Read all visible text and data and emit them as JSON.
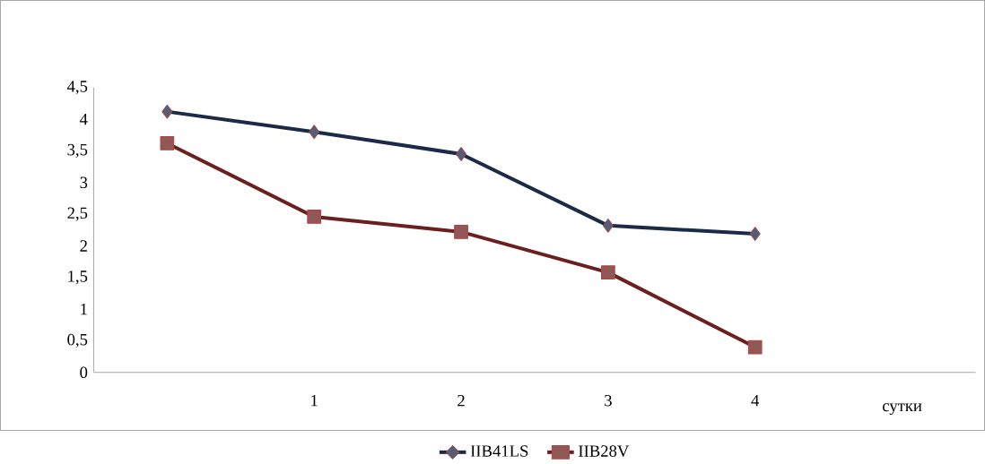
{
  "chart_data": {
    "type": "line",
    "xlabel": "сутки",
    "categories": [
      null,
      "1",
      "2",
      "3",
      "4"
    ],
    "series": [
      {
        "name": "IIB41LS",
        "color": "#1b2a47",
        "marker": "diamond",
        "values": [
          4.12,
          3.8,
          3.45,
          2.32,
          2.19
        ]
      },
      {
        "name": "IIB28V",
        "color": "#6b1f1f",
        "marker": "square",
        "values": [
          3.62,
          2.46,
          2.22,
          1.58,
          0.4
        ]
      }
    ],
    "ylim": [
      0,
      4.5
    ],
    "yticks": [
      0,
      {
        "value": 0.5,
        "label": "0,5"
      },
      1,
      {
        "value": 1.5,
        "label": "1,5"
      },
      2,
      {
        "value": 2.5,
        "label": "2,5"
      },
      3,
      {
        "value": 3.5,
        "label": "3,5"
      },
      4,
      {
        "value": 4.5,
        "label": "4,5"
      }
    ],
    "grid": false,
    "legend": "bottom",
    "line_style": "solid"
  }
}
